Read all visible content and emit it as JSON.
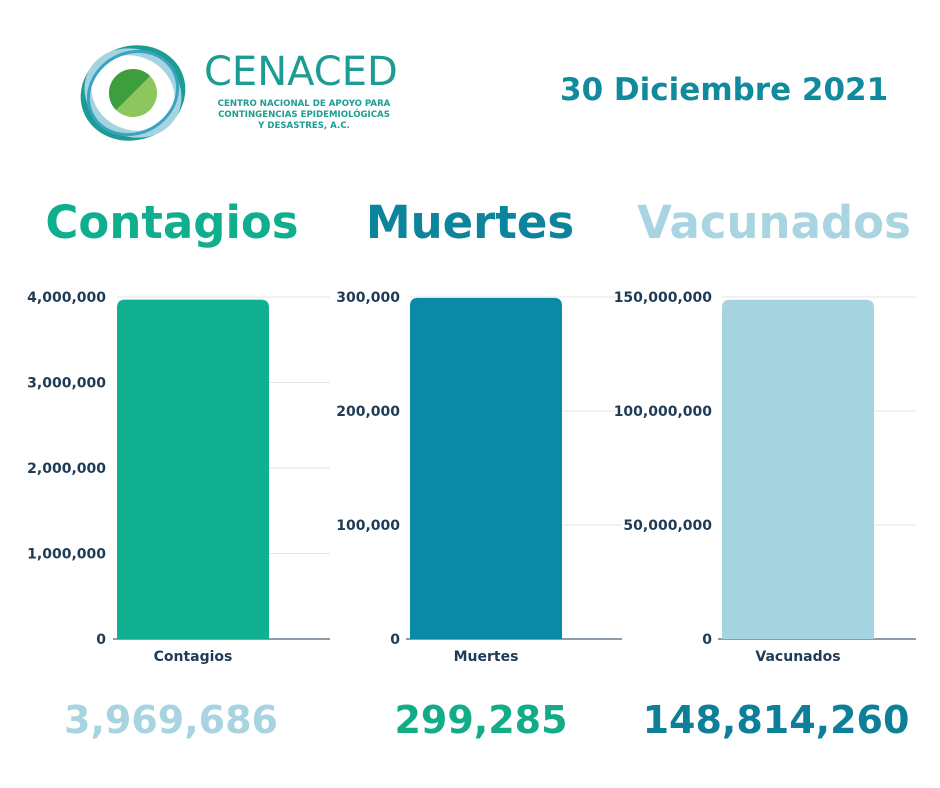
{
  "header": {
    "logo_name": "CENACED",
    "logo_subtitle_lines": [
      "CENTRO NACIONAL DE APOYO PARA",
      "CONTINGENCIAS EPIDEMIOLÓGICAS",
      "Y DESASTRES, A.C."
    ],
    "date": "30 Diciembre 2021"
  },
  "panels": [
    {
      "title": "Contagios",
      "title_color": "#0fae8e",
      "total": "3,969,686",
      "total_color": "#a8d3e0"
    },
    {
      "title": "Muertes",
      "title_color": "#0d849d",
      "total": "299,285",
      "total_color": "#13ac88"
    },
    {
      "title": "Vacunados",
      "title_color": "#a9d4e1",
      "total": "148,814,260",
      "total_color": "#0e7f98"
    }
  ],
  "colors": {
    "teal": "#11b091",
    "blue": "#0b8aa8",
    "light_blue": "#a6d3e0",
    "axis_text": "#1f3b55",
    "grid": "#e6e6e6"
  },
  "chart_data": [
    {
      "type": "bar",
      "categories": [
        "Contagios"
      ],
      "values": [
        3969686
      ],
      "ylim": [
        0,
        4000000
      ],
      "yticks": [
        "0",
        "1,000,000",
        "2,000,000",
        "3,000,000",
        "4,000,000"
      ],
      "tick_values": [
        0,
        1000000,
        2000000,
        3000000,
        4000000
      ],
      "grid": true,
      "color": "#11b091"
    },
    {
      "type": "bar",
      "categories": [
        "Muertes"
      ],
      "values": [
        299285
      ],
      "ylim": [
        0,
        300000
      ],
      "yticks": [
        "0",
        "100,000",
        "200,000",
        "300,000"
      ],
      "tick_values": [
        0,
        100000,
        200000,
        300000
      ],
      "grid": true,
      "color": "#0b8aa8"
    },
    {
      "type": "bar",
      "categories": [
        "Vacunados"
      ],
      "values": [
        148814260
      ],
      "ylim": [
        0,
        150000000
      ],
      "yticks": [
        "0",
        "50,000,000",
        "100,000,000",
        "150,000,000"
      ],
      "tick_values": [
        0,
        50000000,
        100000000,
        150000000
      ],
      "grid": true,
      "color": "#a6d3e0"
    }
  ]
}
